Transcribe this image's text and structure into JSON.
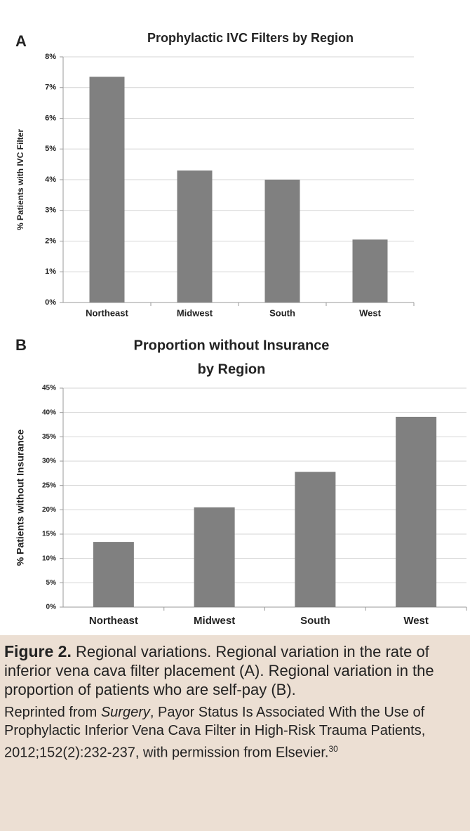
{
  "chart_data": [
    {
      "type": "bar",
      "panel": "A",
      "title": [
        "Prophylactic IVC Filters by Region"
      ],
      "ylabel": "% Patients with IVC Filter",
      "categories": [
        "Northeast",
        "Midwest",
        "South",
        "West"
      ],
      "values": [
        7.35,
        4.3,
        4.0,
        2.05
      ],
      "color": "#808080",
      "ylim": [
        0,
        8
      ],
      "yticks": [
        {
          "value": 0,
          "label": "0%"
        },
        {
          "value": 1,
          "label": "1%"
        },
        {
          "value": 2,
          "label": "2%"
        },
        {
          "value": 3,
          "label": "3%"
        },
        {
          "value": 4,
          "label": "4%"
        },
        {
          "value": 5,
          "label": "5%"
        },
        {
          "value": 6,
          "label": "6%"
        },
        {
          "value": 7,
          "label": "7%"
        },
        {
          "value": 8,
          "label": "8%"
        }
      ],
      "grid": true
    },
    {
      "type": "bar",
      "panel": "B",
      "title": [
        "Proportion without Insurance",
        "by Region"
      ],
      "ylabel": "% Patients without Insurance",
      "categories": [
        "Northeast",
        "Midwest",
        "South",
        "West"
      ],
      "values": [
        13.4,
        20.5,
        27.8,
        39.1
      ],
      "color": "#808080",
      "ylim": [
        0,
        45
      ],
      "yticks": [
        {
          "value": 0,
          "label": "0%"
        },
        {
          "value": 5,
          "label": "5%"
        },
        {
          "value": 10,
          "label": "10%"
        },
        {
          "value": 15,
          "label": "15%"
        },
        {
          "value": 20,
          "label": "20%"
        },
        {
          "value": 25,
          "label": "25%"
        },
        {
          "value": 30,
          "label": "30%"
        },
        {
          "value": 35,
          "label": "35%"
        },
        {
          "value": 40,
          "label": "40%"
        },
        {
          "value": 45,
          "label": "45%"
        }
      ],
      "grid": true
    }
  ],
  "caption": {
    "label": "Figure 2.",
    "text": "Regional variations. Regional variation in the rate of inferior vena cava filter placement (A). Regional variation in the proportion of patients who are self-pay (B).",
    "credit": [
      "Reprinted from ",
      "Surgery",
      ", Payor Status Is Associated With the Use of Prophylactic Inferior Vena Cava Filter in High-Risk Trauma Patients, 2012;152(2):232-237, with permission from Elsevier.",
      "30"
    ]
  }
}
